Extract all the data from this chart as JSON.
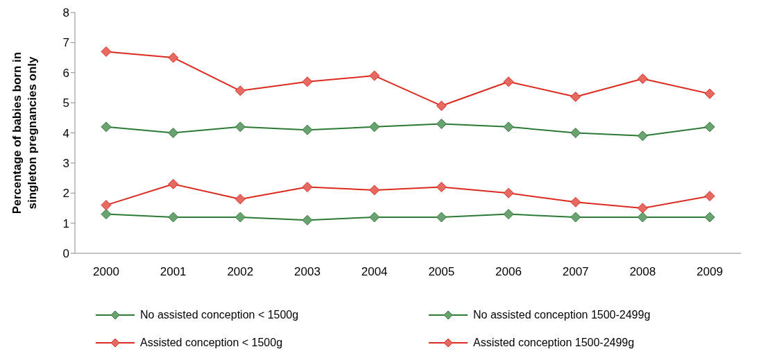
{
  "chart_data": {
    "type": "line",
    "ylabel": "Percentage of babies born in singleton pregnancies only",
    "categories": [
      "2000",
      "2001",
      "2002",
      "2003",
      "2004",
      "2005",
      "2006",
      "2007",
      "2008",
      "2009"
    ],
    "ylim": [
      0,
      8
    ],
    "yticks": [
      0,
      1,
      2,
      3,
      4,
      5,
      6,
      7,
      8
    ],
    "grid": false,
    "legend": "bottom",
    "marker": "diamond",
    "line_style": "solid",
    "series": [
      {
        "name": "No assisted conception < 1500g",
        "color": "#2a7a34",
        "values": [
          1.3,
          1.2,
          1.2,
          1.1,
          1.2,
          1.2,
          1.3,
          1.2,
          1.2,
          1.2
        ]
      },
      {
        "name": "No assisted conception 1500-2499g",
        "color": "#2a7a34",
        "values": [
          4.2,
          4.0,
          4.2,
          4.1,
          4.2,
          4.3,
          4.2,
          4.0,
          3.9,
          4.2
        ]
      },
      {
        "name": "Assisted conception < 1500g",
        "color": "#dc2a1e",
        "values": [
          1.6,
          2.3,
          1.8,
          2.2,
          2.1,
          2.2,
          2.0,
          1.7,
          1.5,
          1.9
        ]
      },
      {
        "name": "Assisted conception 1500-2499g",
        "color": "#dc2a1e",
        "values": [
          6.7,
          6.5,
          5.4,
          5.7,
          5.9,
          4.9,
          5.7,
          5.2,
          5.8,
          5.3
        ]
      }
    ]
  }
}
